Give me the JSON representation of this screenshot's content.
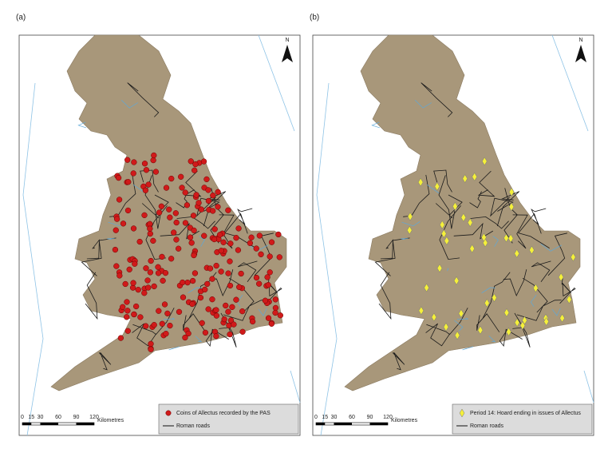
{
  "panels": [
    {
      "label": "(a)",
      "north": "N",
      "scale": {
        "ticks": [
          0,
          15,
          30,
          60,
          90,
          120
        ],
        "unit": "Kilometres"
      },
      "legend": [
        {
          "label": "Coins of Allectus recorded by the PAS"
        },
        {
          "label": "Roman roads"
        }
      ]
    },
    {
      "label": "(b)",
      "north": "N",
      "scale": {
        "ticks": [
          0,
          15,
          30,
          60,
          90,
          120
        ],
        "unit": "Kilometres"
      },
      "legend": [
        {
          "label": "Period 14: Hoard ending in issues of Allectus"
        },
        {
          "label": "Roman roads"
        }
      ]
    }
  ]
}
